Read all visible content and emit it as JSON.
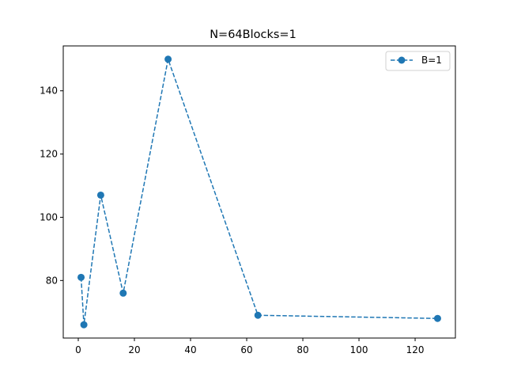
{
  "chart_data": {
    "type": "line",
    "title": "N=64Blocks=1",
    "xlabel": "",
    "ylabel": "",
    "xlim": [
      -5.35,
      134.35
    ],
    "ylim": [
      61.8,
      154.2
    ],
    "xticks": [
      0,
      20,
      40,
      60,
      80,
      100,
      120
    ],
    "yticks": [
      80,
      100,
      120,
      140
    ],
    "grid": false,
    "legend_position": "top-right",
    "series": [
      {
        "name": "B=1",
        "color": "#1f77b4",
        "line_style": "dashed",
        "marker": "circle",
        "x": [
          1,
          2,
          8,
          16,
          32,
          64,
          128
        ],
        "y": [
          81,
          66,
          107,
          76,
          150,
          69,
          68
        ]
      }
    ]
  }
}
